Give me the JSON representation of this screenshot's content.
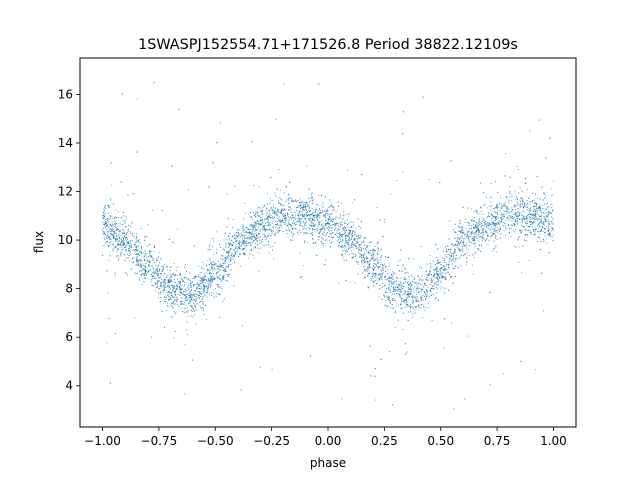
{
  "chart_data": {
    "type": "scatter",
    "title": "1SWASPJ152554.71+171526.8 Period 38822.12109s",
    "xlabel": "phase",
    "ylabel": "flux",
    "xlim": [
      -1.1,
      1.1
    ],
    "ylim": [
      2.3,
      17.5
    ],
    "xticks": [
      -1.0,
      -0.75,
      -0.5,
      -0.25,
      0.0,
      0.25,
      0.5,
      0.75,
      1.0
    ],
    "xtick_labels": [
      "−1.00",
      "−0.75",
      "−0.50",
      "−0.25",
      "0.00",
      "0.25",
      "0.50",
      "0.75",
      "1.00"
    ],
    "yticks": [
      4,
      6,
      8,
      10,
      12,
      14,
      16
    ],
    "ytick_labels": [
      "4",
      "6",
      "8",
      "10",
      "12",
      "14",
      "16"
    ],
    "grid": false,
    "marker_color": "#1f77b4",
    "series": [
      {
        "phase_range": [
          -1.0,
          1.0
        ],
        "period_in_phase": 1.0,
        "model_curve": [
          {
            "x": -1.0,
            "y": 10.6
          },
          {
            "x": -0.9,
            "y": 10.0
          },
          {
            "x": -0.8,
            "y": 9.0
          },
          {
            "x": -0.7,
            "y": 8.0
          },
          {
            "x": -0.6,
            "y": 7.8
          },
          {
            "x": -0.5,
            "y": 8.6
          },
          {
            "x": -0.4,
            "y": 9.9
          },
          {
            "x": -0.3,
            "y": 10.6
          },
          {
            "x": -0.2,
            "y": 11.0
          },
          {
            "x": -0.1,
            "y": 11.0
          },
          {
            "x": 0.0,
            "y": 10.6
          },
          {
            "x": 0.1,
            "y": 10.0
          },
          {
            "x": 0.2,
            "y": 9.0
          },
          {
            "x": 0.3,
            "y": 8.0
          },
          {
            "x": 0.4,
            "y": 7.8
          },
          {
            "x": 0.5,
            "y": 8.6
          },
          {
            "x": 0.6,
            "y": 9.9
          },
          {
            "x": 0.7,
            "y": 10.6
          },
          {
            "x": 0.8,
            "y": 11.0
          },
          {
            "x": 0.9,
            "y": 11.0
          },
          {
            "x": 1.0,
            "y": 10.6
          }
        ],
        "scatter_sigma": 0.45,
        "outlier_range": [
          2.8,
          16.8
        ]
      }
    ]
  }
}
